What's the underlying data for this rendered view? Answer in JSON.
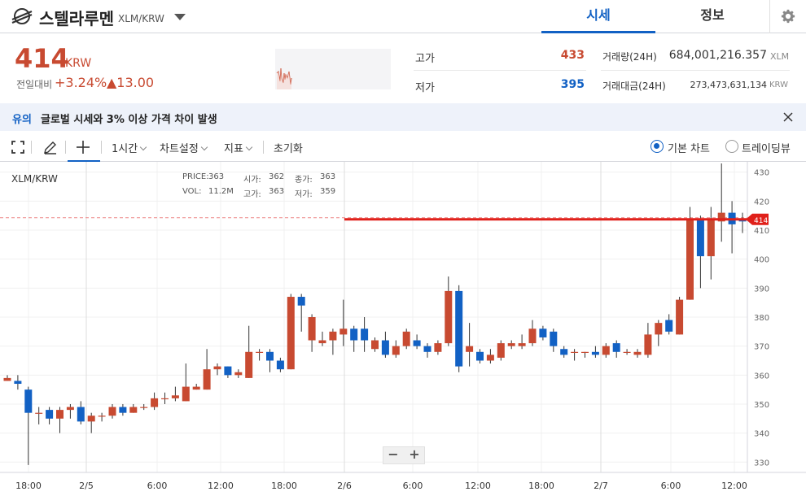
{
  "header": {
    "coin_name": "스텔라루멘",
    "pair": "XLM/KRW",
    "tabs": [
      {
        "label": "시세",
        "active": true
      },
      {
        "label": "정보",
        "active": false
      }
    ]
  },
  "summary": {
    "price": "414",
    "price_unit": "KRW",
    "change_label": "전일대비",
    "change_rate": "+3.24%",
    "change_amount": "▲13.00",
    "high_label": "고가",
    "high_value": "433",
    "low_label": "저가",
    "low_value": "395",
    "volume_label": "거래량(24H)",
    "volume_value": "684,001,216.357",
    "volume_unit": "XLM",
    "turnover_label": "거래대금(24H)",
    "turnover_value": "273,473,631,134",
    "turnover_unit": "KRW"
  },
  "notice": {
    "tag": "유의",
    "text": "글로벌 시세와 3% 이상 가격 차이 발생"
  },
  "toolbar": {
    "interval": "1시간",
    "chart_settings": "차트설정",
    "indicators": "지표",
    "reset": "초기화",
    "basic_chart": "기본 차트",
    "tradingview": "트레이딩뷰"
  },
  "colors": {
    "up": "#c84a31",
    "down": "#1261c4",
    "accent": "#1261c4"
  },
  "chart_info": {
    "pair": "XLM/KRW",
    "price_label": "PRICE:",
    "price_value": "363",
    "open_label": "시가:",
    "open_value": "362",
    "close_label": "종가:",
    "close_value": "363",
    "vol_label": "VOL:",
    "vol_value": "11.2M",
    "high_label": "고가:",
    "high_value": "363",
    "low_label": "저가:",
    "low_value": "359",
    "current_price_tag": "414",
    "zoom_out": "−",
    "zoom_in": "+"
  },
  "chart_data": {
    "type": "candlestick",
    "ylim": [
      327,
      433
    ],
    "y_ticks": [
      330,
      340,
      350,
      360,
      370,
      380,
      390,
      400,
      410,
      420,
      430
    ],
    "x_labels": [
      "18:00",
      "2/5",
      "6:00",
      "12:00",
      "18:00",
      "2/6",
      "6:00",
      "12:00",
      "18:00",
      "2/7",
      "6:00",
      "12:00"
    ],
    "current_price": 414,
    "candles": [
      {
        "o": 358,
        "c": 359,
        "h": 360,
        "l": 358
      },
      {
        "o": 358,
        "c": 357,
        "h": 360,
        "l": 355
      },
      {
        "o": 355,
        "c": 347,
        "h": 356,
        "l": 329
      },
      {
        "o": 347,
        "c": 347,
        "h": 349,
        "l": 343
      },
      {
        "o": 348,
        "c": 345,
        "h": 349,
        "l": 343
      },
      {
        "o": 345,
        "c": 348,
        "h": 349,
        "l": 340
      },
      {
        "o": 348,
        "c": 349,
        "h": 350,
        "l": 345
      },
      {
        "o": 349,
        "c": 344,
        "h": 351,
        "l": 343
      },
      {
        "o": 344,
        "c": 346,
        "h": 347,
        "l": 340
      },
      {
        "o": 346,
        "c": 346,
        "h": 347,
        "l": 344
      },
      {
        "o": 346,
        "c": 349,
        "h": 350,
        "l": 345
      },
      {
        "o": 349,
        "c": 347,
        "h": 350,
        "l": 346
      },
      {
        "o": 347,
        "c": 349,
        "h": 350,
        "l": 347
      },
      {
        "o": 349,
        "c": 349,
        "h": 350,
        "l": 348
      },
      {
        "o": 349,
        "c": 352,
        "h": 354,
        "l": 348
      },
      {
        "o": 352,
        "c": 352,
        "h": 354,
        "l": 350
      },
      {
        "o": 352,
        "c": 353,
        "h": 356,
        "l": 351
      },
      {
        "o": 351,
        "c": 356,
        "h": 364,
        "l": 351
      },
      {
        "o": 355,
        "c": 356,
        "h": 357,
        "l": 355
      },
      {
        "o": 355,
        "c": 362,
        "h": 369,
        "l": 355
      },
      {
        "o": 362,
        "c": 363,
        "h": 364,
        "l": 360
      },
      {
        "o": 363,
        "c": 360,
        "h": 363,
        "l": 359
      },
      {
        "o": 360,
        "c": 361,
        "h": 362,
        "l": 359
      },
      {
        "o": 359,
        "c": 368,
        "h": 377,
        "l": 359
      },
      {
        "o": 368,
        "c": 368,
        "h": 369,
        "l": 365
      },
      {
        "o": 368,
        "c": 365,
        "h": 369,
        "l": 361
      },
      {
        "o": 365,
        "c": 362,
        "h": 366,
        "l": 361
      },
      {
        "o": 362,
        "c": 387,
        "h": 388,
        "l": 362
      },
      {
        "o": 387,
        "c": 384,
        "h": 388,
        "l": 375
      },
      {
        "o": 372,
        "c": 380,
        "h": 381,
        "l": 368
      },
      {
        "o": 371,
        "c": 372,
        "h": 375,
        "l": 370
      },
      {
        "o": 372,
        "c": 375,
        "h": 376,
        "l": 367
      },
      {
        "o": 374,
        "c": 376,
        "h": 386,
        "l": 370
      },
      {
        "o": 376,
        "c": 372,
        "h": 377,
        "l": 368
      },
      {
        "o": 376,
        "c": 372,
        "h": 380,
        "l": 368
      },
      {
        "o": 369,
        "c": 372,
        "h": 373,
        "l": 368
      },
      {
        "o": 372,
        "c": 367,
        "h": 375,
        "l": 366
      },
      {
        "o": 367,
        "c": 370,
        "h": 372,
        "l": 366
      },
      {
        "o": 370,
        "c": 375,
        "h": 376,
        "l": 369
      },
      {
        "o": 372,
        "c": 370,
        "h": 374,
        "l": 369
      },
      {
        "o": 370,
        "c": 368,
        "h": 371,
        "l": 366
      },
      {
        "o": 368,
        "c": 371,
        "h": 372,
        "l": 367
      },
      {
        "o": 371,
        "c": 389,
        "h": 394,
        "l": 370
      },
      {
        "o": 389,
        "c": 363,
        "h": 391,
        "l": 361
      },
      {
        "o": 368,
        "c": 370,
        "h": 378,
        "l": 363
      },
      {
        "o": 368,
        "c": 365,
        "h": 369,
        "l": 364
      },
      {
        "o": 365,
        "c": 367,
        "h": 369,
        "l": 364
      },
      {
        "o": 366,
        "c": 371,
        "h": 372,
        "l": 365
      },
      {
        "o": 370,
        "c": 371,
        "h": 372,
        "l": 369
      },
      {
        "o": 370,
        "c": 371,
        "h": 374,
        "l": 369
      },
      {
        "o": 371,
        "c": 376,
        "h": 379,
        "l": 370
      },
      {
        "o": 376,
        "c": 373,
        "h": 377,
        "l": 372
      },
      {
        "o": 375,
        "c": 370,
        "h": 376,
        "l": 368
      },
      {
        "o": 369,
        "c": 367,
        "h": 370,
        "l": 366
      },
      {
        "o": 368,
        "c": 368,
        "h": 369,
        "l": 365
      },
      {
        "o": 368,
        "c": 368,
        "h": 368,
        "l": 366
      },
      {
        "o": 368,
        "c": 367,
        "h": 370,
        "l": 366
      },
      {
        "o": 367,
        "c": 370,
        "h": 371,
        "l": 366
      },
      {
        "o": 371,
        "c": 368,
        "h": 372,
        "l": 366
      },
      {
        "o": 368,
        "c": 368,
        "h": 369,
        "l": 367
      },
      {
        "o": 367,
        "c": 368,
        "h": 369,
        "l": 366
      },
      {
        "o": 367,
        "c": 374,
        "h": 378,
        "l": 366
      },
      {
        "o": 374,
        "c": 378,
        "h": 379,
        "l": 370
      },
      {
        "o": 379,
        "c": 375,
        "h": 381,
        "l": 374
      },
      {
        "o": 374,
        "c": 386,
        "h": 387,
        "l": 374
      },
      {
        "o": 386,
        "c": 414,
        "h": 418,
        "l": 386
      },
      {
        "o": 414,
        "c": 401,
        "h": 415,
        "l": 390
      },
      {
        "o": 401,
        "c": 414,
        "h": 418,
        "l": 393
      },
      {
        "o": 413,
        "c": 416,
        "h": 433,
        "l": 406
      },
      {
        "o": 416,
        "c": 412,
        "h": 420,
        "l": 402
      },
      {
        "o": 414,
        "c": 413,
        "h": 416,
        "l": 409
      }
    ]
  }
}
